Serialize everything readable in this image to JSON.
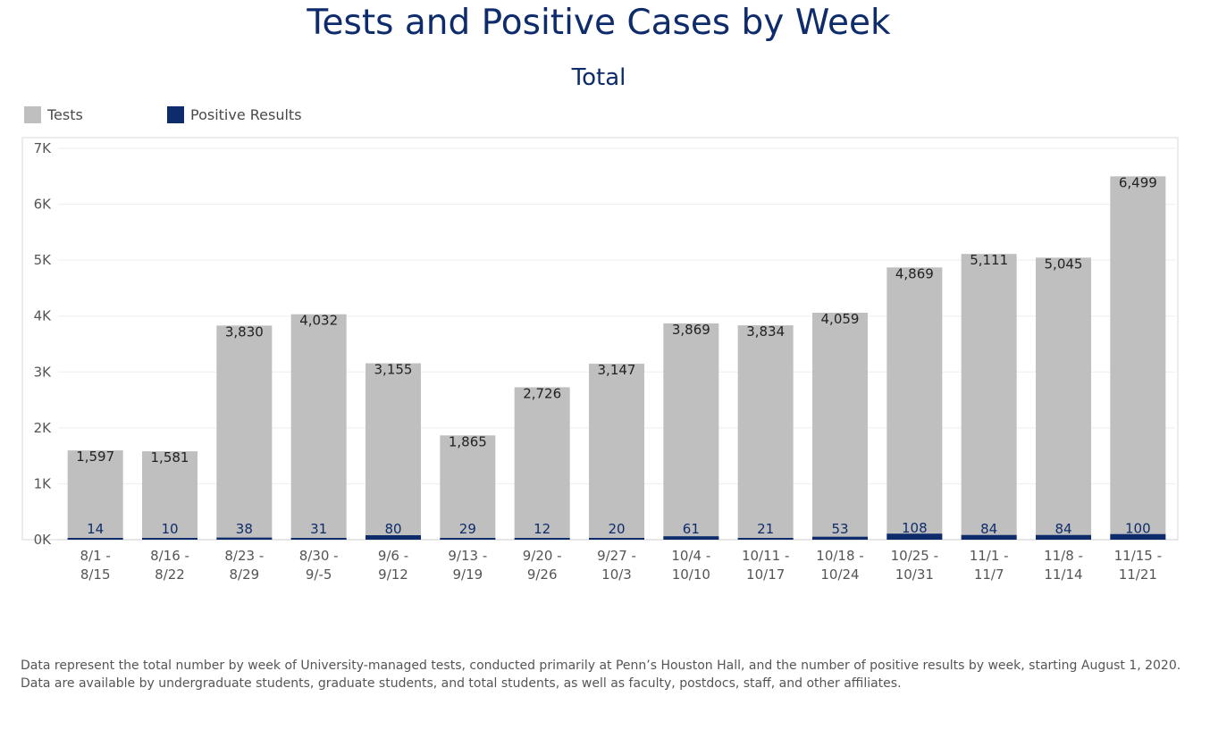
{
  "title": "Tests and Positive Cases by Week",
  "subtitle": "Total",
  "legend": [
    {
      "label": "Tests",
      "color": "#bfbfbf"
    },
    {
      "label": "Positive Results",
      "color": "#0e2c6b"
    }
  ],
  "footnote": "Data represent the total number by week of University-managed tests, conducted primarily at Penn’s Houston Hall, and the number of positive results by week, starting August 1, 2020. Data are available by undergraduate students, graduate students, and total students, as well as faculty, postdocs, staff, and other affiliates.",
  "chart_data": {
    "type": "bar",
    "title": "Tests and Positive Cases by Week",
    "subtitle": "Total",
    "categories": [
      [
        "8/1 -",
        "8/15"
      ],
      [
        "8/16 -",
        "8/22"
      ],
      [
        "8/23 -",
        "8/29"
      ],
      [
        "8/30 -",
        "9/-5"
      ],
      [
        "9/6 -",
        "9/12"
      ],
      [
        "9/13 -",
        "9/19"
      ],
      [
        "9/20 -",
        "9/26"
      ],
      [
        "9/27 -",
        "10/3"
      ],
      [
        "10/4 -",
        "10/10"
      ],
      [
        "10/11 -",
        "10/17"
      ],
      [
        "10/18 -",
        "10/24"
      ],
      [
        "10/25 -",
        "10/31"
      ],
      [
        "11/1 -",
        "11/7"
      ],
      [
        "11/8 -",
        "11/14"
      ],
      [
        "11/15 -",
        "11/21"
      ]
    ],
    "series": [
      {
        "name": "Tests",
        "color": "#bfbfbf",
        "values": [
          1597,
          1581,
          3830,
          4032,
          3155,
          1865,
          2726,
          3147,
          3869,
          3834,
          4059,
          4869,
          5111,
          5045,
          6499
        ],
        "labels": [
          "1,597",
          "1,581",
          "3,830",
          "4,032",
          "3,155",
          "1,865",
          "2,726",
          "3,147",
          "3,869",
          "3,834",
          "4,059",
          "4,869",
          "5,111",
          "5,045",
          "6,499"
        ]
      },
      {
        "name": "Positive Results",
        "color": "#0e2c6b",
        "values": [
          14,
          10,
          38,
          31,
          80,
          29,
          12,
          20,
          61,
          21,
          53,
          108,
          84,
          84,
          100
        ],
        "labels": [
          "14",
          "10",
          "38",
          "31",
          "80",
          "29",
          "12",
          "20",
          "61",
          "21",
          "53",
          "108",
          "84",
          "84",
          "100"
        ]
      }
    ],
    "y_ticks": [
      {
        "value": 0,
        "label": "0K"
      },
      {
        "value": 1000,
        "label": "1K"
      },
      {
        "value": 2000,
        "label": "2K"
      },
      {
        "value": 3000,
        "label": "3K"
      },
      {
        "value": 4000,
        "label": "4K"
      },
      {
        "value": 5000,
        "label": "5K"
      },
      {
        "value": 6000,
        "label": "6K"
      },
      {
        "value": 7000,
        "label": "7K"
      }
    ],
    "ylim": [
      0,
      7000
    ],
    "xlabel": "",
    "ylabel": "",
    "grid": true,
    "legend_position": "top-left",
    "overlap": true
  }
}
